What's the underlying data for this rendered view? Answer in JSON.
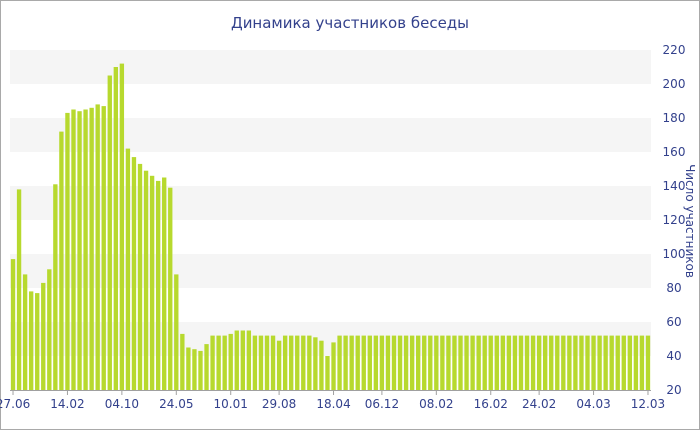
{
  "chart_data": {
    "type": "bar",
    "title": "Динамика участников беседы",
    "ylabel": "Число участников",
    "xlabel": "",
    "ylim": [
      20,
      220
    ],
    "y_ticks": [
      20,
      40,
      60,
      80,
      100,
      120,
      140,
      160,
      180,
      200,
      220
    ],
    "y_axis_side": "right",
    "x_tick_labels": [
      {
        "label": "27.06",
        "index": 0
      },
      {
        "label": "14.02",
        "index": 9
      },
      {
        "label": "04.10",
        "index": 18
      },
      {
        "label": "24.05",
        "index": 27
      },
      {
        "label": "10.01",
        "index": 36
      },
      {
        "label": "29.08",
        "index": 44
      },
      {
        "label": "18.04",
        "index": 53
      },
      {
        "label": "06.12",
        "index": 61
      },
      {
        "label": "08.02",
        "index": 70
      },
      {
        "label": "16.02",
        "index": 79
      },
      {
        "label": "24.02",
        "index": 87
      },
      {
        "label": "04.03",
        "index": 96
      },
      {
        "label": "12.03",
        "index": 105
      }
    ],
    "grid": "horizontal bands",
    "bar_color": "#b7d92e",
    "values": [
      97,
      138,
      88,
      78,
      77,
      83,
      91,
      141,
      172,
      183,
      185,
      184,
      185,
      186,
      188,
      187,
      205,
      210,
      212,
      162,
      157,
      153,
      149,
      146,
      143,
      145,
      139,
      88,
      53,
      45,
      44,
      43,
      47,
      52,
      52,
      52,
      53,
      55,
      55,
      55,
      52,
      52,
      52,
      52,
      49,
      52,
      52,
      52,
      52,
      52,
      51,
      49,
      40,
      48,
      52,
      52,
      52,
      52,
      52,
      52,
      52,
      52,
      52,
      52,
      52,
      52,
      52,
      52,
      52,
      52,
      52,
      52,
      52,
      52,
      52,
      52,
      52,
      52,
      52,
      52,
      52,
      52,
      52,
      52,
      52,
      52,
      52,
      52,
      52,
      52,
      52,
      52,
      52,
      52,
      52,
      52,
      52,
      52,
      52,
      52,
      52,
      52,
      52,
      52,
      52,
      52
    ]
  }
}
